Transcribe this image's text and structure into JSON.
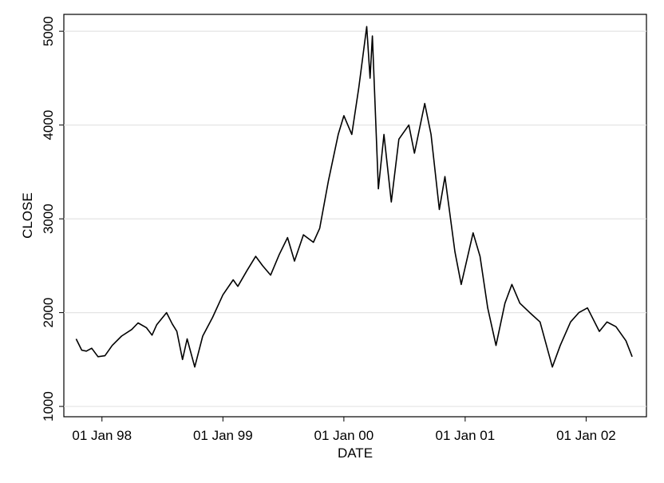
{
  "chart_data": {
    "type": "line",
    "x_label": "DATE",
    "y_label": "CLOSE",
    "x": [
      "1997-10-15",
      "1997-11-01",
      "1997-11-15",
      "1997-12-01",
      "1997-12-20",
      "1998-01-10",
      "1998-02-01",
      "1998-03-01",
      "1998-04-01",
      "1998-04-20",
      "1998-05-15",
      "1998-06-01",
      "1998-06-15",
      "1998-07-15",
      "1998-08-01",
      "1998-08-15",
      "1998-09-01",
      "1998-09-15",
      "1998-10-08",
      "1998-11-01",
      "1998-12-01",
      "1999-01-01",
      "1999-02-01",
      "1999-02-15",
      "1999-03-15",
      "1999-04-10",
      "1999-05-01",
      "1999-05-25",
      "1999-06-20",
      "1999-07-15",
      "1999-08-05",
      "1999-09-01",
      "1999-10-01",
      "1999-10-20",
      "1999-11-15",
      "1999-12-15",
      "2000-01-01",
      "2000-01-25",
      "2000-02-15",
      "2000-03-10",
      "2000-03-20",
      "2000-03-27",
      "2000-04-14",
      "2000-05-01",
      "2000-05-23",
      "2000-06-15",
      "2000-07-15",
      "2000-08-01",
      "2000-09-01",
      "2000-09-20",
      "2000-10-15",
      "2000-11-01",
      "2000-12-01",
      "2000-12-20",
      "2001-01-25",
      "2001-02-15",
      "2001-03-10",
      "2001-04-04",
      "2001-05-01",
      "2001-05-22",
      "2001-06-15",
      "2001-07-15",
      "2001-08-15",
      "2001-09-21",
      "2001-10-15",
      "2001-11-15",
      "2001-12-10",
      "2002-01-05",
      "2002-02-10",
      "2002-03-05",
      "2002-04-01",
      "2002-05-01",
      "2002-05-20"
    ],
    "series": [
      {
        "name": "CLOSE",
        "color": "#000000",
        "values": [
          1720,
          1600,
          1590,
          1620,
          1530,
          1540,
          1650,
          1750,
          1820,
          1890,
          1840,
          1760,
          1870,
          2000,
          1880,
          1800,
          1500,
          1720,
          1420,
          1750,
          1950,
          2190,
          2350,
          2280,
          2450,
          2600,
          2500,
          2400,
          2620,
          2800,
          2550,
          2830,
          2750,
          2900,
          3400,
          3900,
          4100,
          3900,
          4400,
          5050,
          4500,
          4950,
          3320,
          3900,
          3180,
          3850,
          4000,
          3700,
          4230,
          3900,
          3100,
          3450,
          2650,
          2300,
          2850,
          2600,
          2050,
          1650,
          2100,
          2300,
          2100,
          2000,
          1900,
          1420,
          1650,
          1900,
          2000,
          2050,
          1800,
          1900,
          1850,
          1700,
          1530
        ]
      }
    ],
    "xlim": [
      "1997-09-08",
      "2002-07-02"
    ],
    "xticks": [
      {
        "value": "1998-01-01",
        "label": "01 Jan 98"
      },
      {
        "value": "1999-01-01",
        "label": "01 Jan 99"
      },
      {
        "value": "2000-01-01",
        "label": "01 Jan 00"
      },
      {
        "value": "2001-01-01",
        "label": "01 Jan 01"
      },
      {
        "value": "2002-01-01",
        "label": "01 Jan 02"
      }
    ],
    "ylim": [
      890,
      5180
    ],
    "yticks": [
      1000,
      2000,
      3000,
      4000,
      5000
    ],
    "grid": true
  }
}
